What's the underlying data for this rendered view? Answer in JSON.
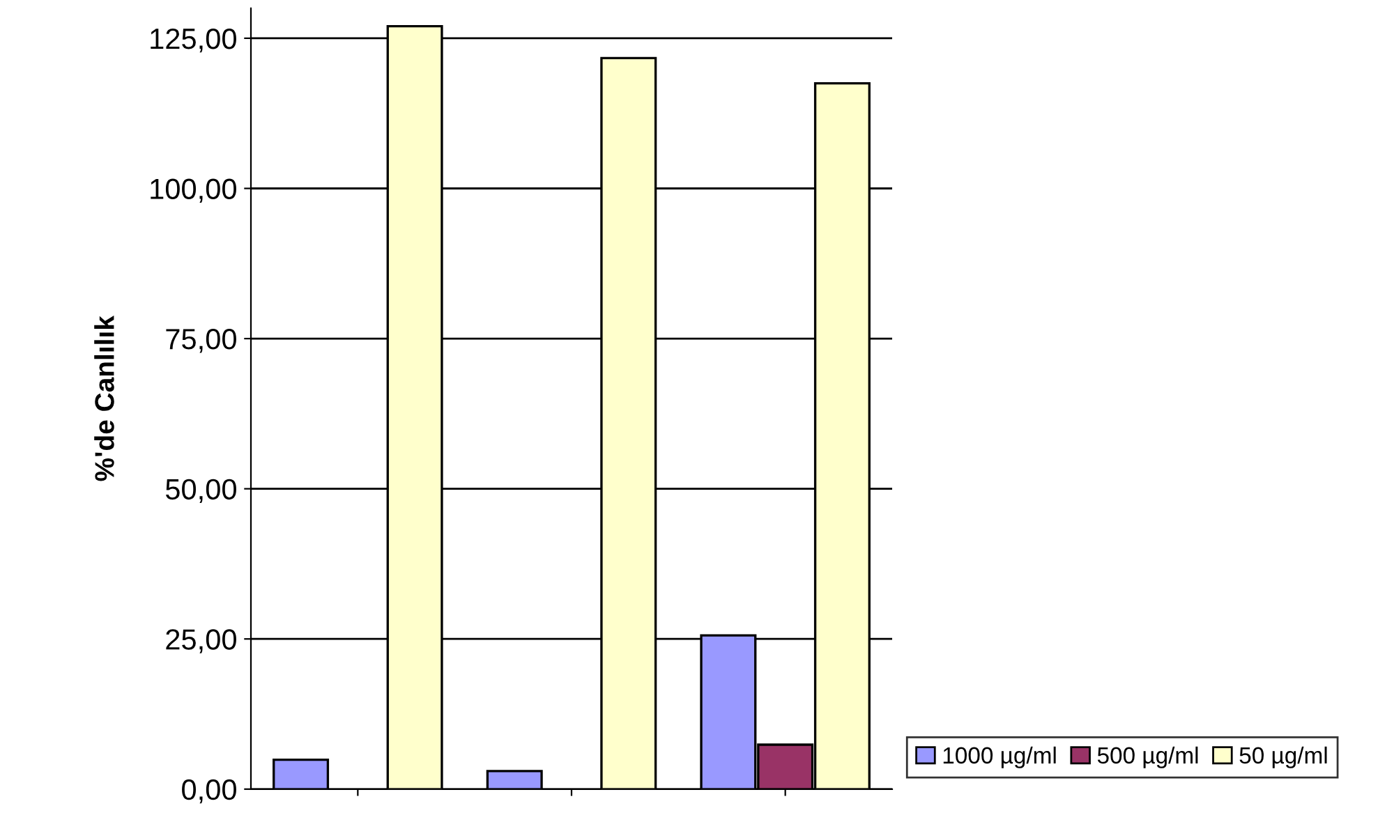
{
  "chart_data": {
    "type": "bar",
    "ylabel": "%'de Canlılık",
    "categories": [
      null,
      null,
      null
    ],
    "series": [
      {
        "name": "1000 µg/ml",
        "color": "#9999ff",
        "values": [
          4.9,
          3.0,
          25.6
        ]
      },
      {
        "name": "500 µg/ml",
        "color": "#993366",
        "values": [
          null,
          null,
          7.4
        ]
      },
      {
        "name": "50 µg/ml",
        "color": "#ffffcc",
        "values": [
          127.0,
          121.7,
          117.5
        ]
      }
    ],
    "ylim": [
      0,
      130
    ],
    "yticks": [
      {
        "value": 0,
        "label": "0,00"
      },
      {
        "value": 25,
        "label": "25,00"
      },
      {
        "value": 50,
        "label": "50,00"
      },
      {
        "value": 75,
        "label": "75,00"
      },
      {
        "value": 100,
        "label": "100,00"
      },
      {
        "value": 125,
        "label": "125,00"
      }
    ],
    "grid": "y",
    "legend": "bottom right"
  }
}
